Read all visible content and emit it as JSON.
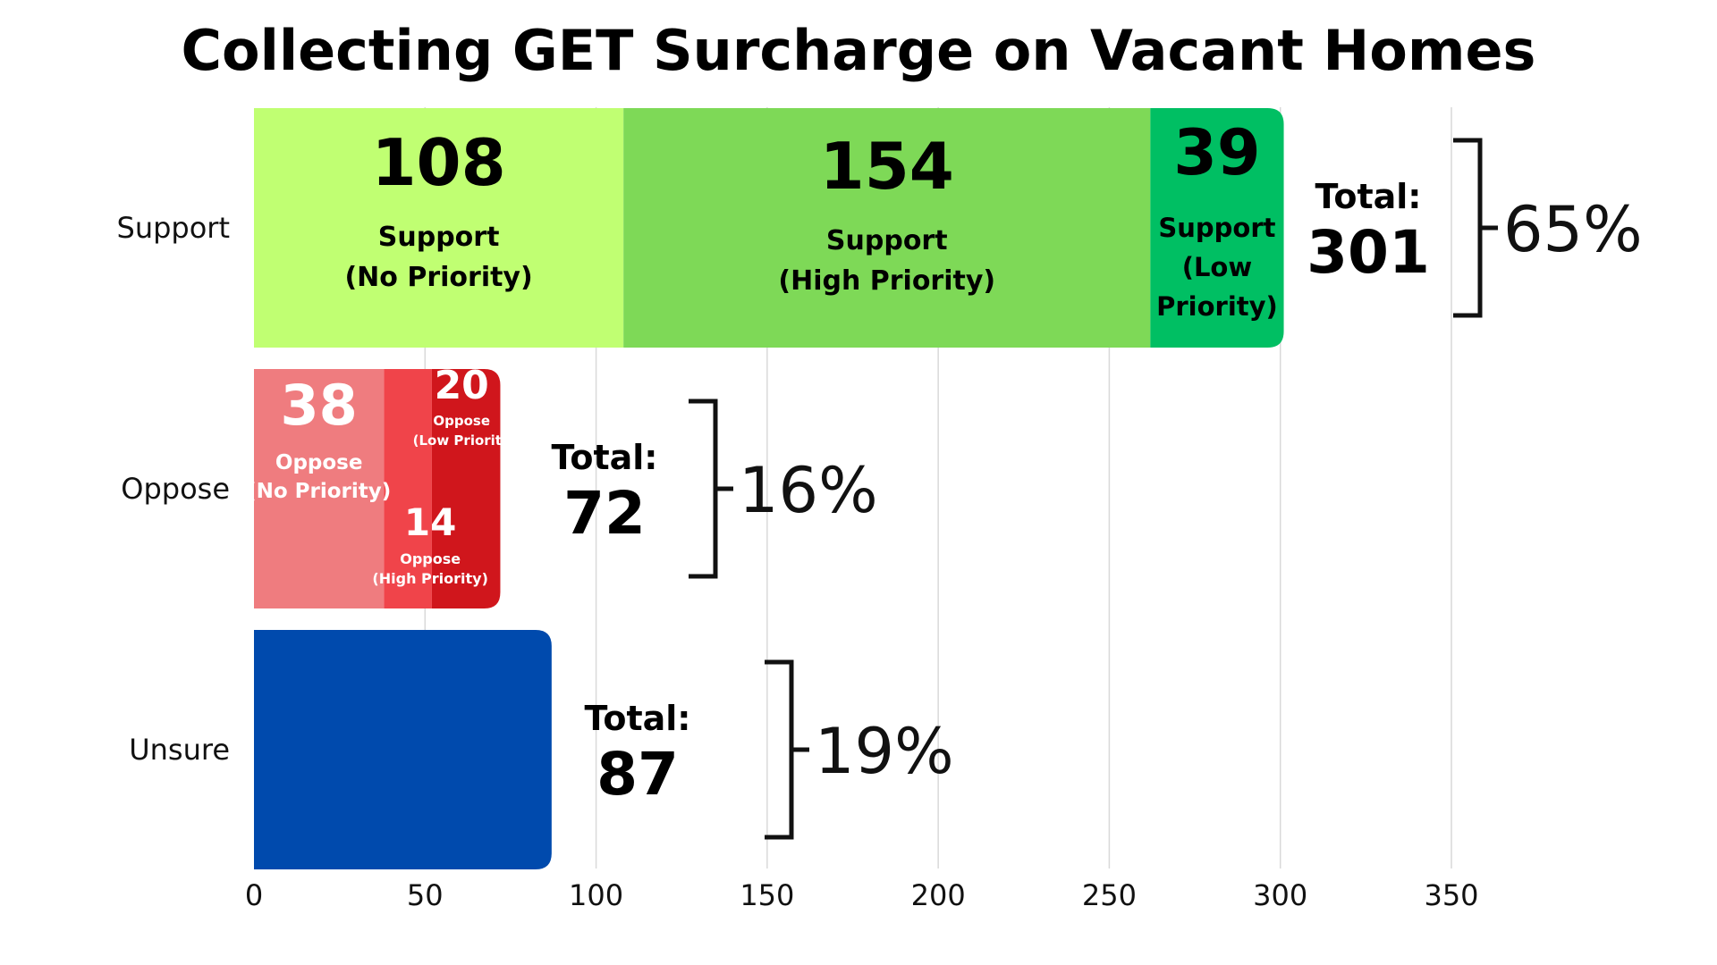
{
  "chart_data": {
    "type": "bar",
    "orientation": "horizontal",
    "stacked": true,
    "title": "Collecting GET Surcharge on Vacant Homes",
    "xlim": [
      0,
      350
    ],
    "x_ticks": [
      "0",
      "50",
      "100",
      "150",
      "200",
      "250",
      "300",
      "350"
    ],
    "grid": "vertical",
    "categories": [
      "Support",
      "Oppose",
      "Unsure"
    ],
    "bars": [
      {
        "category": "Support",
        "segments": [
          {
            "value": 108,
            "label_number": "108",
            "label_lines": [
              "Support",
              "(No Priority)"
            ],
            "color": "#c0ff72"
          },
          {
            "value": 154,
            "label_number": "154",
            "label_lines": [
              "Support",
              "(High Priority)"
            ],
            "color": "#7ed957"
          },
          {
            "value": 39,
            "label_number": "39",
            "label_lines": [
              "Support",
              "(Low",
              "Priority)"
            ],
            "color": "#00bf63"
          }
        ],
        "total_label": "Total:",
        "total": "301",
        "percent": "65%"
      },
      {
        "category": "Oppose",
        "segments": [
          {
            "value": 38,
            "label_number": "38",
            "label_lines": [
              "Oppose",
              "(No Priority)"
            ],
            "color": "#ef7c7f"
          },
          {
            "value": 14,
            "label_number": "14",
            "label_lines": [
              "Oppose",
              "(High Priority)"
            ],
            "color": "#f0444a"
          },
          {
            "value": 20,
            "label_number": "20",
            "label_lines": [
              "Oppose",
              "(Low Priority"
            ],
            "color": "#d0161c"
          }
        ],
        "total_label": "Total:",
        "total": "72",
        "percent": "16%"
      },
      {
        "category": "Unsure",
        "segments": [
          {
            "value": 87,
            "label_number": "",
            "label_lines": [],
            "color": "#004aad"
          }
        ],
        "total_label": "Total:",
        "total": "87",
        "percent": "19%"
      }
    ]
  }
}
